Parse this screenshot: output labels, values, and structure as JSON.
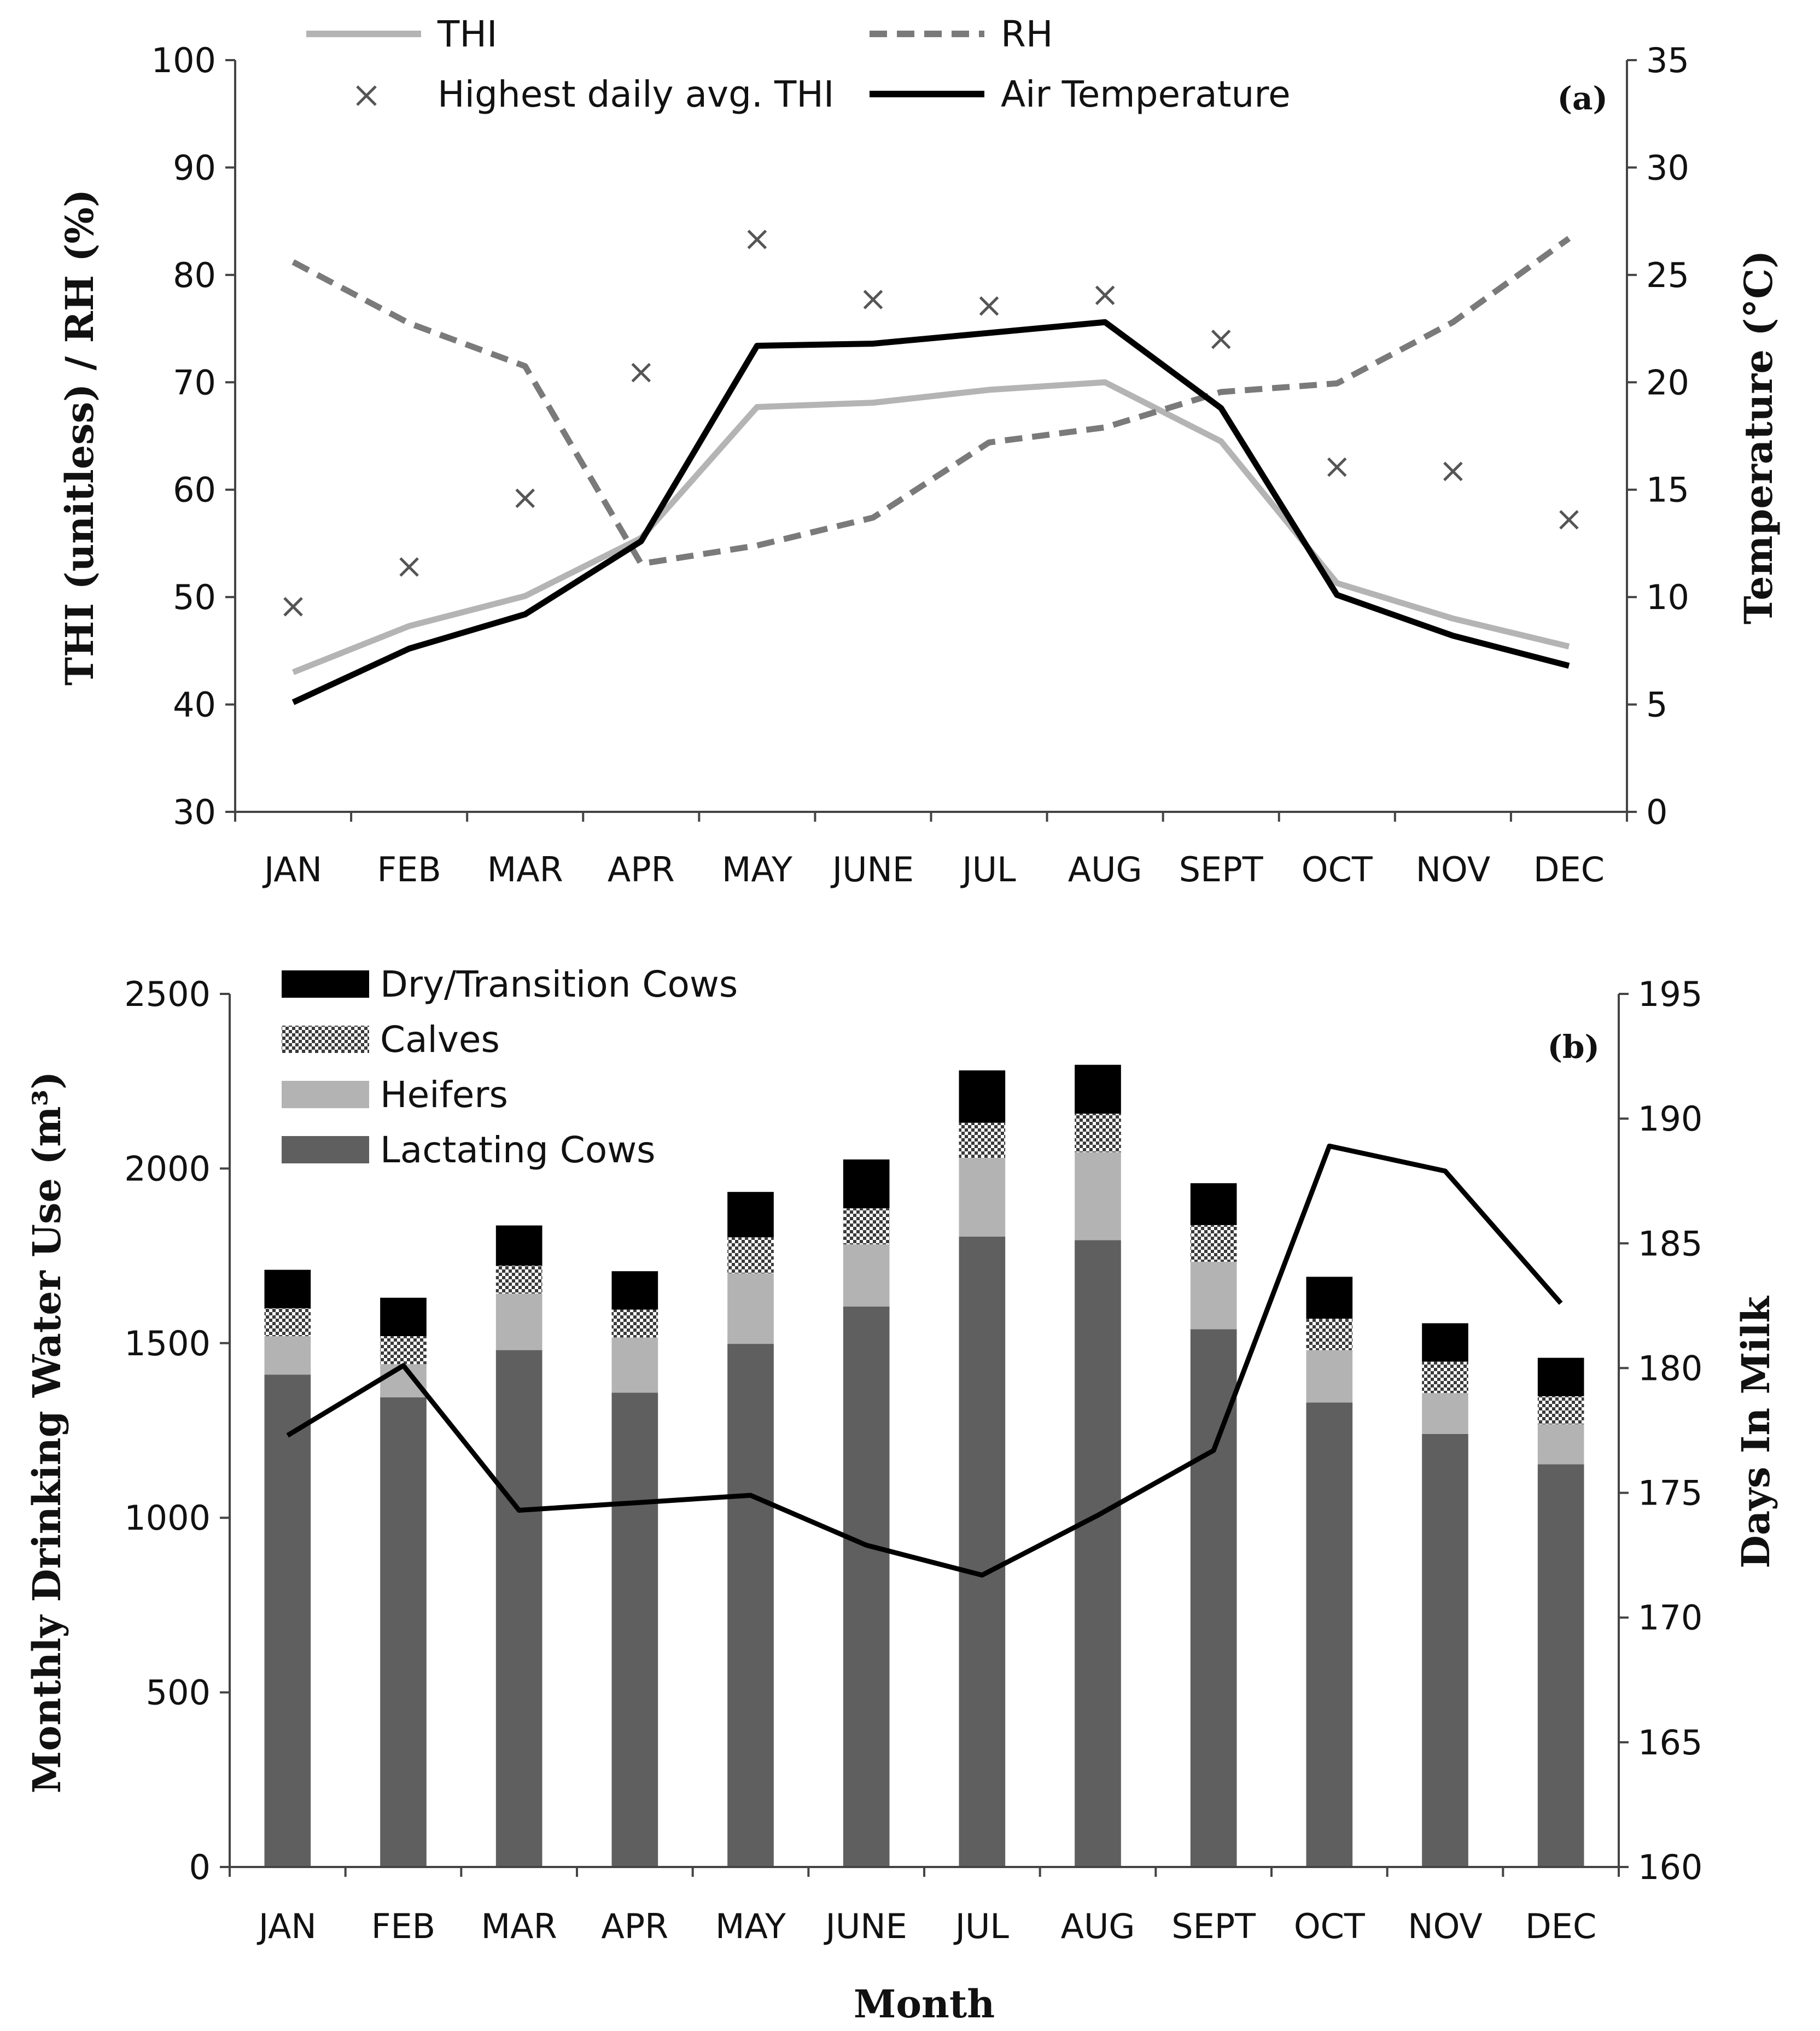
{
  "chart_data": [
    {
      "type": "line",
      "panel_label": "(a)",
      "categories": [
        "JAN",
        "FEB",
        "MAR",
        "APR",
        "MAY",
        "JUNE",
        "JUL",
        "AUG",
        "SEPT",
        "OCT",
        "NOV",
        "DEC"
      ],
      "ylabel": "THI (unitless) / RH (%)",
      "y2label": "Temperature (°C)",
      "ylim": [
        30,
        100
      ],
      "y2lim": [
        0,
        35
      ],
      "yticks": [
        30,
        40,
        50,
        60,
        70,
        80,
        90,
        100
      ],
      "y2ticks": [
        0,
        5,
        10,
        15,
        20,
        25,
        30,
        35
      ],
      "series": [
        {
          "name": "THI",
          "axis": "left",
          "style": "solid-light",
          "color": "#b4b4b4",
          "values": [
            43,
            47.3,
            50.1,
            55.5,
            67.7,
            68.1,
            69.3,
            70,
            64.5,
            51.3,
            48,
            45.4
          ]
        },
        {
          "name": "RH",
          "axis": "left",
          "style": "dashed",
          "color": "#7a7a7a",
          "values": [
            81.2,
            75.5,
            71.5,
            53.1,
            54.8,
            57.4,
            64.4,
            65.8,
            69.1,
            69.9,
            75.6,
            83.4
          ]
        },
        {
          "name": "Highest daily avg. THI",
          "axis": "left",
          "style": "cross",
          "color": "#555555",
          "values": [
            49.1,
            52.8,
            59.2,
            70.9,
            83.3,
            77.7,
            77.1,
            78.1,
            74,
            62.1,
            61.7,
            57.2
          ]
        },
        {
          "name": "Air Temperature",
          "axis": "right",
          "style": "solid-dark",
          "color": "#000000",
          "values": [
            5.1,
            7.6,
            9.2,
            12.6,
            21.7,
            21.8,
            22.3,
            22.8,
            18.8,
            10.1,
            8.2,
            6.8
          ]
        }
      ]
    },
    {
      "type": "bar",
      "stacked": true,
      "panel_label": "(b)",
      "categories": [
        "JAN",
        "FEB",
        "MAR",
        "APR",
        "MAY",
        "JUNE",
        "JUL",
        "AUG",
        "SEPT",
        "OCT",
        "NOV",
        "DEC"
      ],
      "xlabel": "Month",
      "ylabel": "Monthly Drinking Water Use (m³)",
      "y2label": "Days In Milk",
      "ylim": [
        0,
        2500
      ],
      "y2lim": [
        160,
        195
      ],
      "yticks": [
        0,
        500,
        1000,
        1500,
        2000,
        2500
      ],
      "y2ticks": [
        160,
        165,
        170,
        175,
        180,
        185,
        190,
        195
      ],
      "legend_order": [
        "Dry/Transition Cows",
        "Calves",
        "Heifers",
        "Lactating Cows"
      ],
      "series": [
        {
          "name": "Lactating Cows",
          "fill": "solid",
          "color": "#5f5f5f",
          "values": [
            1410,
            1345,
            1480,
            1358,
            1498,
            1605,
            1805,
            1795,
            1540,
            1330,
            1240,
            1153
          ]
        },
        {
          "name": "Heifers",
          "fill": "solid",
          "color": "#b3b3b3",
          "values": [
            110,
            95,
            162,
            158,
            202,
            178,
            225,
            252,
            193,
            150,
            117,
            115
          ]
        },
        {
          "name": "Calves",
          "fill": "checker",
          "color": "#3a3a3a",
          "values": [
            80,
            80,
            80,
            80,
            103,
            103,
            101,
            110,
            105,
            90,
            90,
            80
          ]
        },
        {
          "name": "Dry/Transition Cows",
          "fill": "solid",
          "color": "#000000",
          "values": [
            110,
            110,
            115,
            110,
            130,
            140,
            150,
            140,
            120,
            120,
            110,
            110
          ]
        }
      ],
      "line_series": {
        "name": "Days In Milk",
        "axis": "right",
        "color": "#000000",
        "values": [
          177.3,
          180.1,
          174.3,
          174.6,
          174.9,
          172.9,
          171.7,
          174.1,
          176.7,
          188.9,
          187.9,
          182.6
        ]
      }
    }
  ]
}
